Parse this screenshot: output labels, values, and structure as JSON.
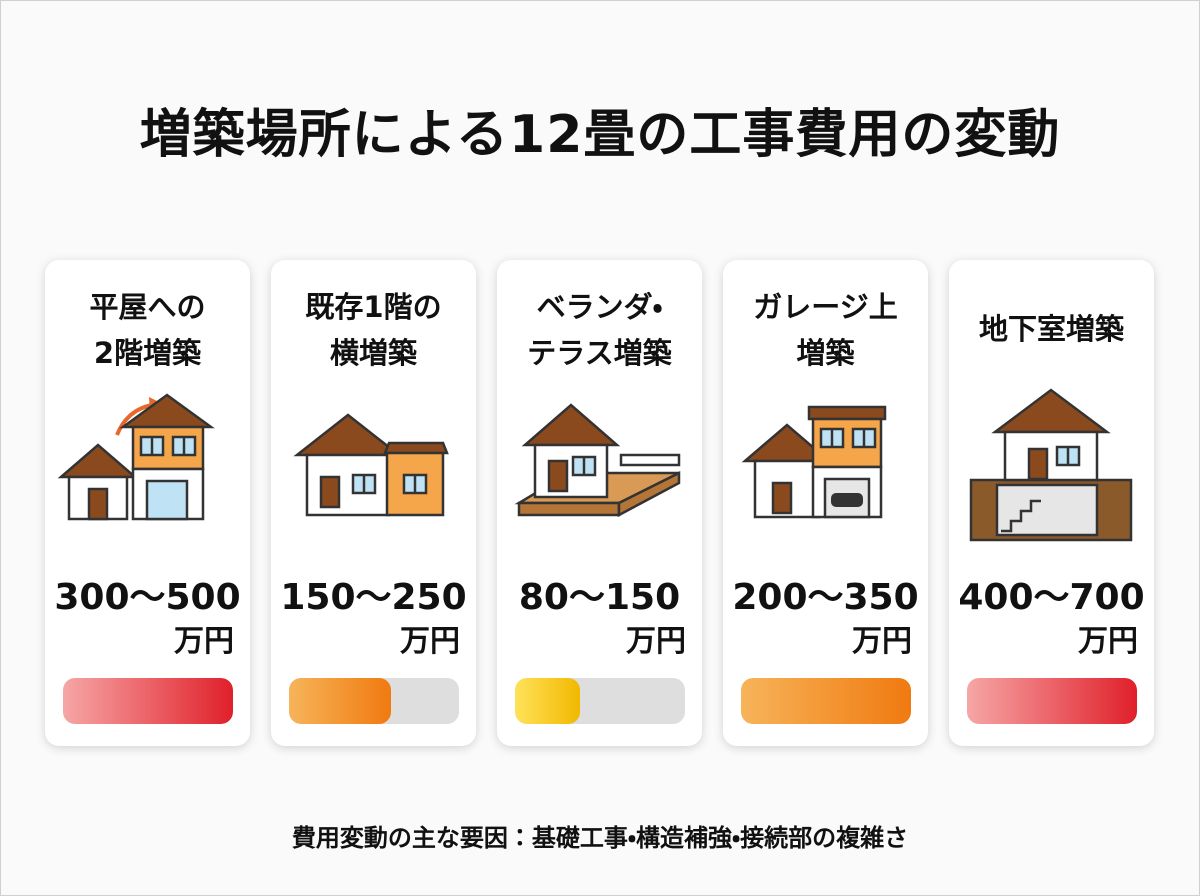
{
  "header": {
    "title": "増築場所による12畳の工事費用の変動"
  },
  "cards": [
    {
      "title": [
        "平屋への",
        "2階増築"
      ],
      "range": "300〜500",
      "unit": "万円"
    },
    {
      "title": [
        "既存1階の",
        "横増築"
      ],
      "range": "150〜250",
      "unit": "万円"
    },
    {
      "title": [
        "ベランダ・",
        "テラス増築"
      ],
      "range": "80〜150",
      "unit": "万円"
    },
    {
      "title": [
        "ガレージ上",
        "増築"
      ],
      "range": "200〜350",
      "unit": "万円"
    },
    {
      "title": [
        "地下室増築"
      ],
      "range": "400〜700",
      "unit": "万円"
    }
  ],
  "footer": "費用変動の主な要因：基礎工事・構造補強・接続部の複雑さ"
}
